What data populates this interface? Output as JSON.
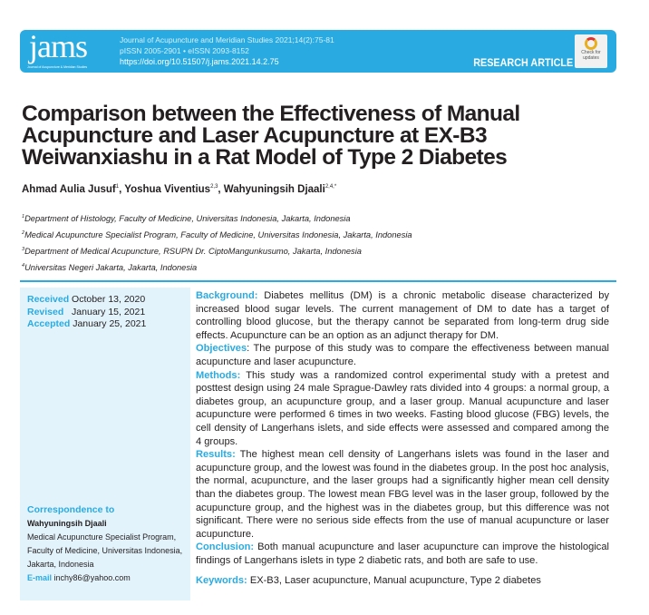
{
  "header": {
    "logo": "jams",
    "logo_subtitle": "Journal of Acupuncture & Meridian Studies",
    "journal": "Journal of Acupuncture and Meridian Studies 2021;14(2):75-81",
    "issn": "pISSN 2005-2901 • eISSN 2093-8152",
    "doi": "https://doi.org/10.51507/j.jams.2021.14.2.75",
    "article_type": "RESEARCH ARTICLE",
    "check_updates": "Check for updates",
    "accent": "#29abe2"
  },
  "title": "Comparison between the Effectiveness of Manual Acupuncture and Laser Acupuncture at EX-B3 Weiwanxiashu in a Rat Model of Type 2 Diabetes",
  "authors": [
    {
      "name": "Ahmad Aulia Jusuf",
      "sup": "1"
    },
    {
      "name": "Yoshua Viventius",
      "sup": "2,3"
    },
    {
      "name": "Wahyuningsih Djaali",
      "sup": "2,4,*"
    }
  ],
  "affiliations": [
    {
      "sup": "1",
      "text": "Department of Histology, Faculty of Medicine, Universitas Indonesia, Jakarta, Indonesia"
    },
    {
      "sup": "2",
      "text": "Medical Acupuncture Specialist Program, Faculty of Medicine, Universitas Indonesia, Jakarta, Indonesia"
    },
    {
      "sup": "3",
      "text": "Department of Medical Acupuncture, RSUPN Dr. CiptoMangunkusumo, Jakarta, Indonesia"
    },
    {
      "sup": "4",
      "text": "Universitas Negeri Jakarta, Jakarta, Indonesia"
    }
  ],
  "dates": [
    {
      "label": "Received",
      "value": "October 13, 2020"
    },
    {
      "label": "Revised",
      "value": "January 15, 2021"
    },
    {
      "label": "Accepted",
      "value": "January 25, 2021"
    }
  ],
  "correspondence": {
    "heading": "Correspondence to",
    "name": "Wahyuningsih Djaali",
    "address": "Medical Acupuncture Specialist Program, Faculty of Medicine, Universitas Indonesia, Jakarta, Indonesia",
    "email_label": "E-mail",
    "email": "inchy86@yahoo.com"
  },
  "abstract": [
    {
      "label": "Background:",
      "text": "Diabetes mellitus (DM) is a chronic metabolic disease characterized by increased blood sugar levels. The current management of DM to date has a target of controlling blood glucose, but the therapy cannot be separated from long-term drug side effects. Acupuncture can be an option as an adjunct therapy for DM."
    },
    {
      "label": "Objectives",
      "text": ": The purpose of this study was to compare the effectiveness between manual acupuncture and laser acupuncture."
    },
    {
      "label": "Methods:",
      "text": "This study was a randomized control experimental study with a pretest and posttest design using 24 male Sprague-Dawley rats divided into 4 groups: a normal group, a diabetes group, an acupuncture group, and a laser group. Manual acupuncture and laser acupuncture were performed 6 times in two weeks. Fasting blood glucose (FBG) levels, the cell density of Langerhans islets, and side effects were assessed and compared among the 4 groups."
    },
    {
      "label": "Results:",
      "text": "The highest mean cell density of Langerhans islets was found in the laser and acupuncture group, and the lowest was found in the diabetes group. In the post hoc analysis, the normal, acupuncture, and the laser groups had a significantly higher mean cell density than the diabetes group. The lowest mean FBG level was in the laser group, followed by the acupuncture group, and the highest was in the diabetes group, but this difference was not significant. There were no serious side effects from the use of manual acupuncture or laser acupuncture."
    },
    {
      "label": "Conclusion:",
      "text": "Both manual acupuncture and laser acupuncture can improve the histological findings of Langerhans islets in type 2 diabetic rats, and both are safe to use."
    }
  ],
  "keywords": {
    "label": "Keywords:",
    "text": "EX-B3, Laser acupuncture, Manual acupuncture, Type 2 diabetes"
  }
}
